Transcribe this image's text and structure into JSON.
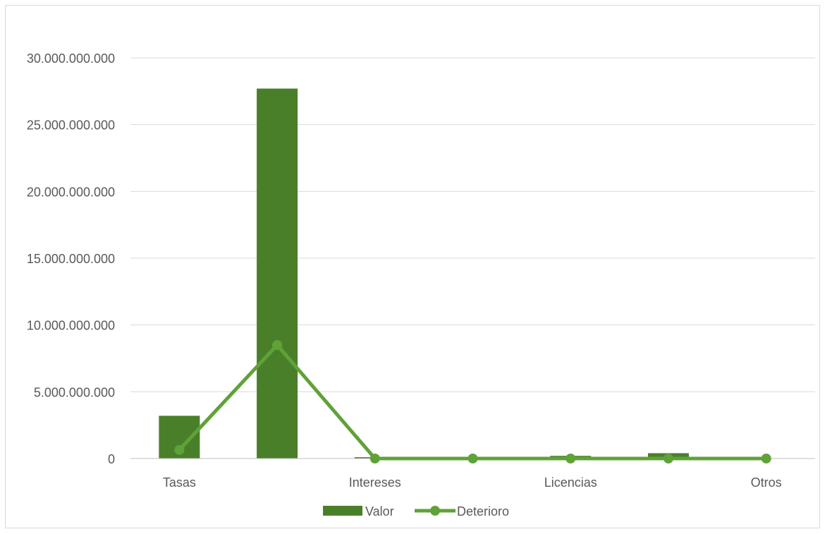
{
  "chart_data": {
    "type": "bar",
    "categories": [
      "Tasas",
      "",
      "Intereses",
      "",
      "Licencias",
      "",
      "Otros"
    ],
    "series": [
      {
        "name": "Valor",
        "type": "bar",
        "color": "#4a7f2a",
        "values": [
          3200000000,
          27700000000,
          100000000,
          0,
          200000000,
          400000000,
          0
        ]
      },
      {
        "name": "Deterioro",
        "type": "line",
        "color": "#5fa238",
        "values": [
          650000000,
          8500000000,
          0,
          0,
          0,
          0,
          0
        ]
      }
    ],
    "ylim": [
      0,
      30000000000
    ],
    "yticks": [
      0,
      5000000000,
      10000000000,
      15000000000,
      20000000000,
      25000000000,
      30000000000
    ],
    "ytick_labels": [
      "0",
      "5.000.000.000",
      "10.000.000.000",
      "15.000.000.000",
      "20.000.000.000",
      "25.000.000.000",
      "30.000.000.000"
    ],
    "grid": true,
    "legend_position": "bottom",
    "gridline_color": "#d9d9d9",
    "axis_color": "#bfbfbf"
  }
}
